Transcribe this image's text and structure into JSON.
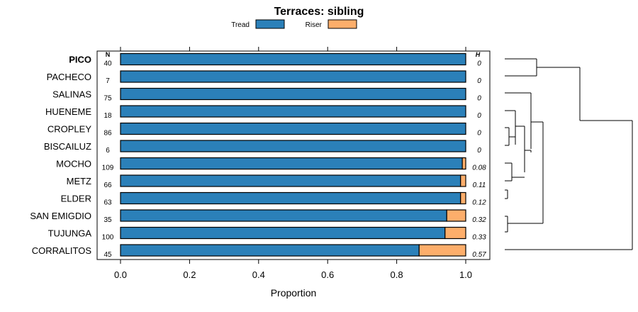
{
  "chart_data": {
    "type": "bar",
    "stacked": true,
    "orientation": "horizontal",
    "title": "Terraces: sibling",
    "xlabel": "Proportion",
    "ylabel": "",
    "xlim": [
      0,
      1
    ],
    "xticks": [
      "0.0",
      "0.2",
      "0.4",
      "0.6",
      "0.8",
      "1.0"
    ],
    "legend": {
      "placement": "top",
      "items": [
        "Tread",
        "Riser"
      ]
    },
    "colors": {
      "Tread": "#2b80b9",
      "Riser": "#fdae6b"
    },
    "n_header": "N",
    "h_header": "H",
    "highlighted_category": "PICO",
    "categories": [
      "PICO",
      "PACHECO",
      "SALINAS",
      "HUENEME",
      "CROPLEY",
      "BISCAILUZ",
      "MOCHO",
      "METZ",
      "ELDER",
      "SAN EMIGDIO",
      "TUJUNGA",
      "CORRALITOS"
    ],
    "n": [
      "40",
      "7",
      "75",
      "18",
      "86",
      "6",
      "109",
      "66",
      "63",
      "35",
      "100",
      "45"
    ],
    "h": [
      "0",
      "0",
      "0",
      "0",
      "0",
      "0",
      "0.08",
      "0.11",
      "0.12",
      "0.32",
      "0.33",
      "0.57"
    ],
    "series": [
      {
        "name": "Tread",
        "values": [
          1.0,
          1.0,
          1.0,
          1.0,
          1.0,
          1.0,
          0.99,
          0.985,
          0.985,
          0.945,
          0.94,
          0.865
        ]
      },
      {
        "name": "Riser",
        "values": [
          0.0,
          0.0,
          0.0,
          0.0,
          0.0,
          0.0,
          0.01,
          0.015,
          0.015,
          0.055,
          0.06,
          0.135
        ]
      }
    ],
    "dendrogram": true
  }
}
